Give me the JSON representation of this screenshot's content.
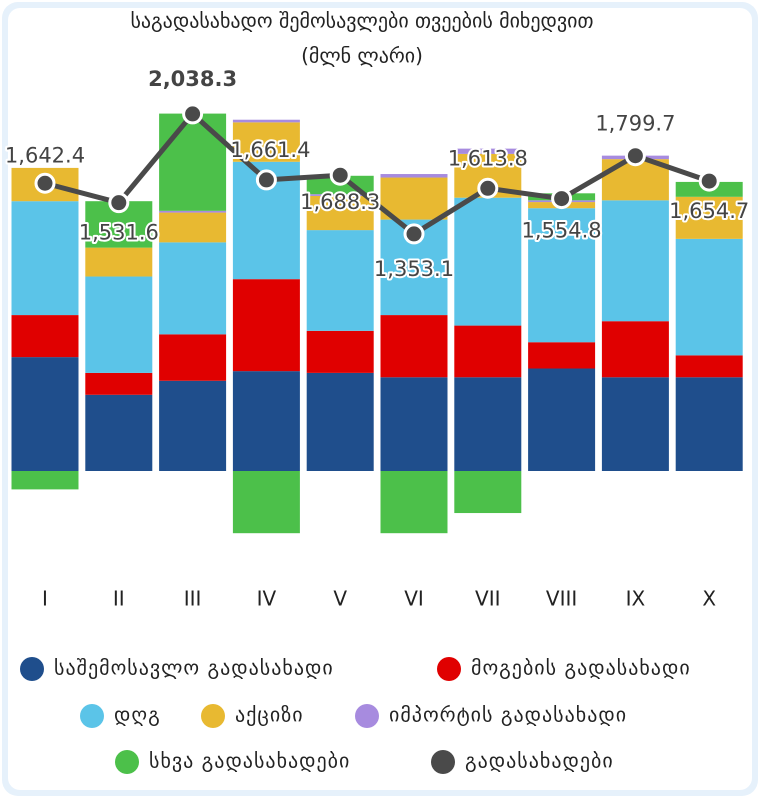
{
  "chart_data": {
    "type": "stacked-bar-line",
    "title": "საგადასახადო შემოსავლები თვეების მიხედვით",
    "subtitle": "(მლნ ლარი)",
    "categories": [
      "I",
      "II",
      "III",
      "IV",
      "V",
      "VI",
      "VII",
      "VIII",
      "IX",
      "X"
    ],
    "series": [
      {
        "name": "საშემოსავლო გადასახადი",
        "color": "#1f4e8c",
        "values": [
          650,
          435,
          515,
          570,
          560,
          535,
          535,
          585,
          535,
          535
        ]
      },
      {
        "name": "მოგების გადასახადი",
        "color": "#e00000",
        "values": [
          240,
          125,
          265,
          525,
          240,
          355,
          295,
          150,
          320,
          125
        ]
      },
      {
        "name": "დღგ",
        "color": "#5bc4e8",
        "values": [
          650,
          550,
          525,
          670,
          575,
          545,
          730,
          765,
          690,
          665
        ]
      },
      {
        "name": "აქციზი",
        "color": "#e8b931",
        "values": [
          190,
          165,
          170,
          225,
          195,
          240,
          250,
          35,
          235,
          240
        ]
      },
      {
        "name": "იმპორტის გადასახადი",
        "color": "#a78bdf",
        "values": [
          0,
          0,
          10,
          15,
          10,
          20,
          30,
          10,
          20,
          0
        ]
      },
      {
        "name": "სხვა გადასახადები",
        "color": "#4cc04a",
        "values": [
          -105,
          265,
          555,
          -355,
          105,
          -355,
          -240,
          40,
          0,
          85
        ]
      }
    ],
    "line": {
      "name": "გადასახადები",
      "color": "#4a4a4a",
      "values": [
        1642.4,
        1531.6,
        2038.3,
        1661.4,
        1688.3,
        1353.1,
        1613.8,
        1554.8,
        1799.7,
        1654.7
      ],
      "value_labels": [
        "1,642.4",
        "1,531.6",
        "2,038.3",
        "1,661.4",
        "1,688.3",
        "1,353.1",
        "1,613.8",
        "1,554.8",
        "1,799.7",
        "1,654.7"
      ]
    }
  }
}
